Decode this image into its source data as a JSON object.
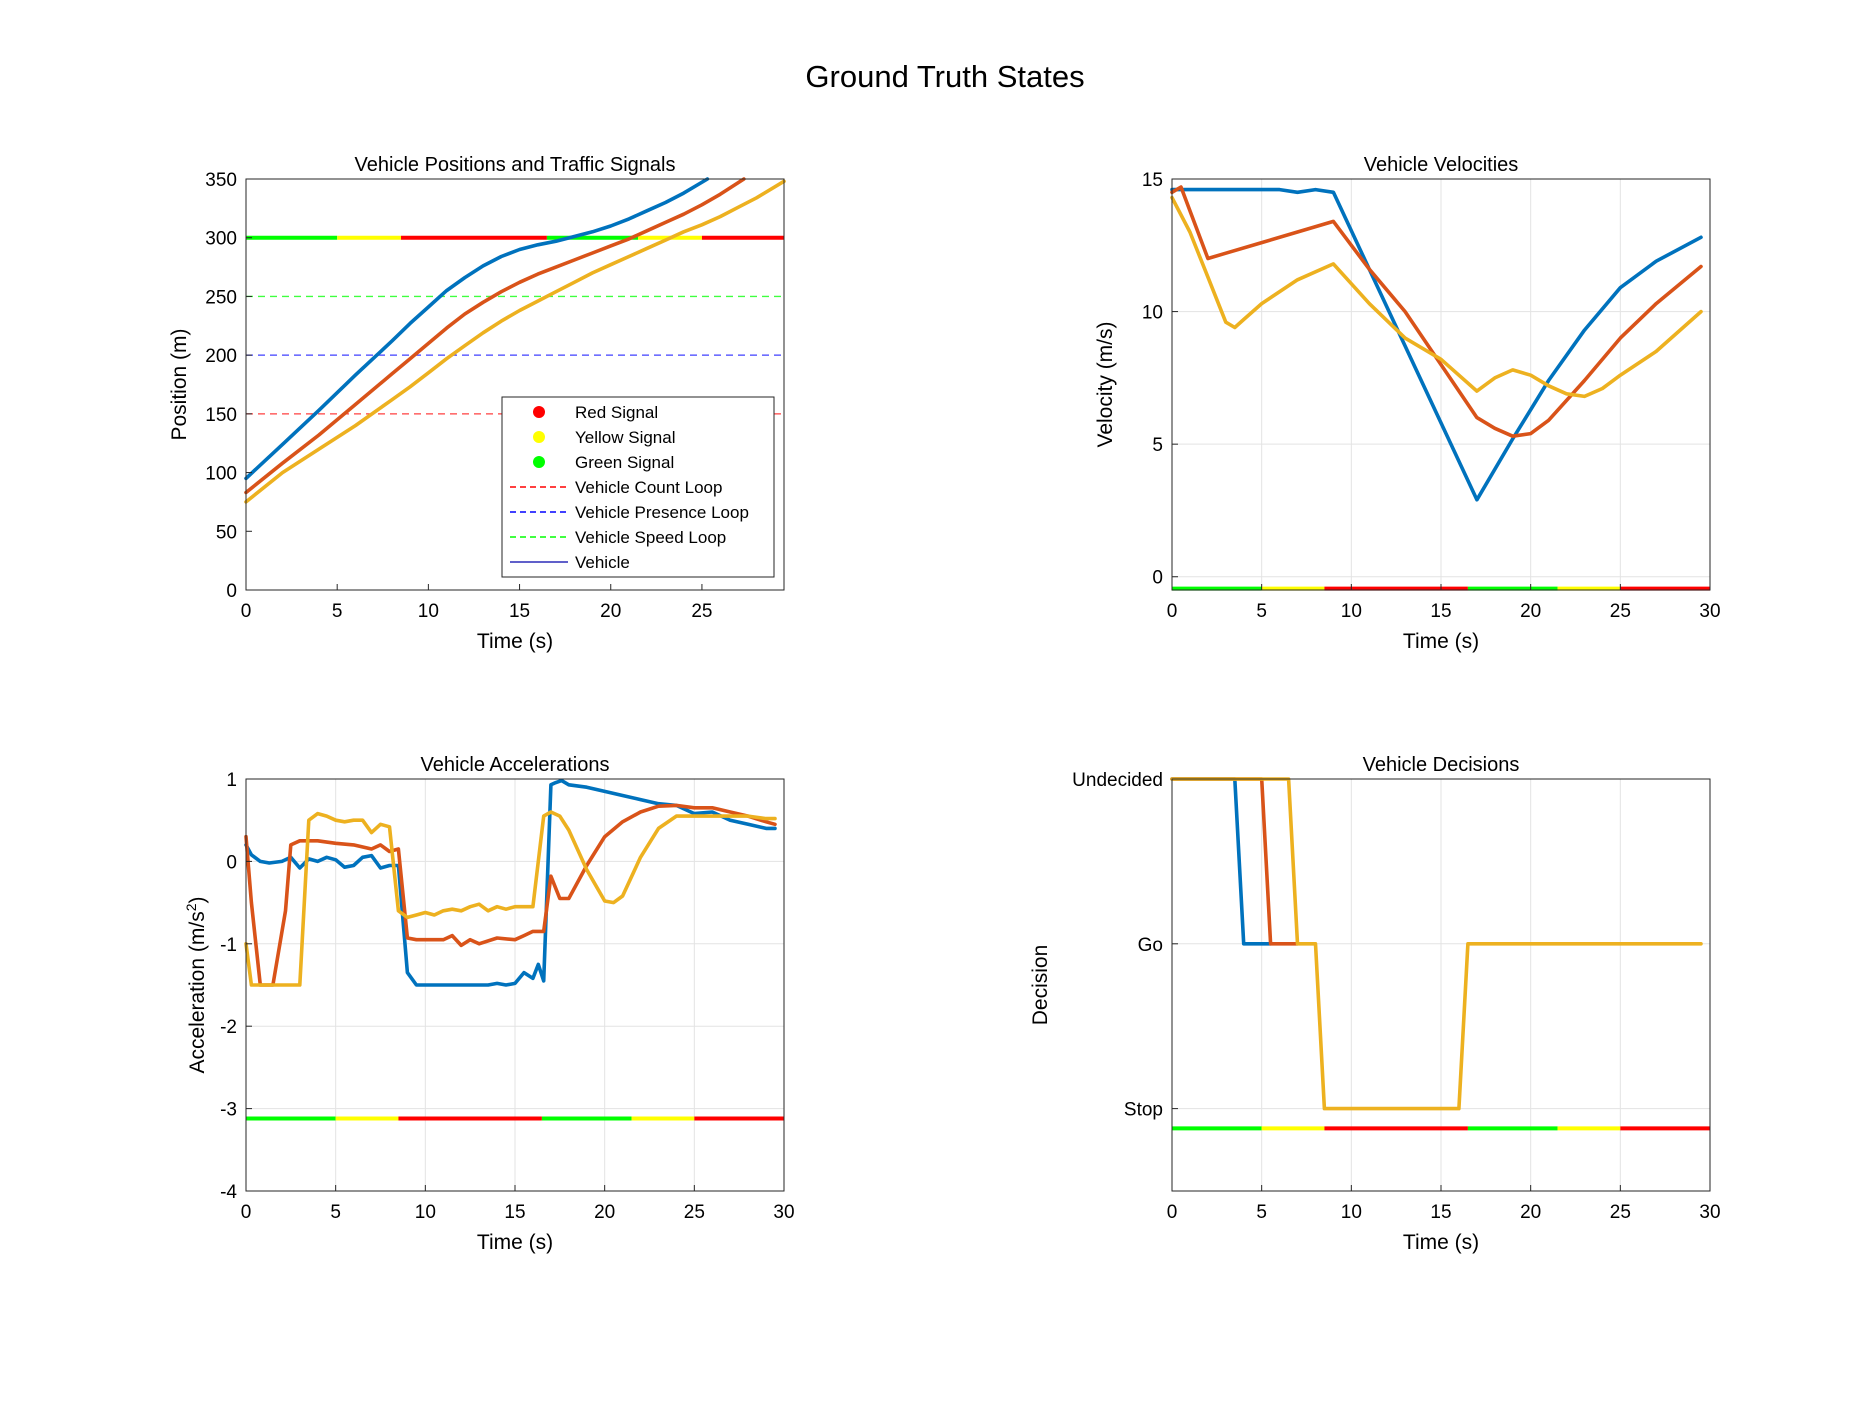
{
  "figure": {
    "title": "Ground Truth States"
  },
  "colors": {
    "series_1": "#0072BD",
    "series_2": "#D95319",
    "series_3": "#EDB120",
    "red_signal": "#FF0000",
    "yellow_signal": "#FFFF00",
    "green_signal": "#00FF00",
    "count_loop": "#FF0000",
    "presence_loop": "#0000FF",
    "speed_loop": "#00FF00",
    "grid": "#E3E3E3"
  },
  "chart_data": [
    {
      "id": "positions",
      "type": "line",
      "title": "Vehicle Positions and Traffic Signals",
      "xlabel": "Time (s)",
      "ylabel": "Position (m)",
      "xlim": [
        0,
        29.5
      ],
      "ylim": [
        0,
        350
      ],
      "xticks": [
        0,
        5,
        10,
        15,
        20,
        25
      ],
      "yticks": [
        0,
        50,
        100,
        150,
        200,
        250,
        300,
        350
      ],
      "grid": false,
      "legend_position": "inside-lower-right",
      "legend": [
        {
          "label": "Red Signal",
          "kind": "marker",
          "color": "#FF0000"
        },
        {
          "label": "Yellow Signal",
          "kind": "marker",
          "color": "#FFFF00"
        },
        {
          "label": "Green Signal",
          "kind": "marker",
          "color": "#00FF00"
        },
        {
          "label": "Vehicle Count Loop",
          "kind": "dashed",
          "color": "#FF0000"
        },
        {
          "label": "Vehicle Presence Loop",
          "kind": "dashed",
          "color": "#0000FF"
        },
        {
          "label": "Vehicle Speed Loop",
          "kind": "dashed",
          "color": "#00FF00"
        },
        {
          "label": "Vehicle",
          "kind": "thin",
          "color": "#0000AA"
        }
      ],
      "hlines": [
        {
          "y": 150,
          "color": "#FF0000"
        },
        {
          "y": 200,
          "color": "#0000FF"
        },
        {
          "y": 250,
          "color": "#00FF00"
        }
      ],
      "signal_bar": {
        "y": 300,
        "segments": [
          {
            "from": 0,
            "to": 5,
            "color": "#00FF00"
          },
          {
            "from": 5,
            "to": 8.5,
            "color": "#FFFF00"
          },
          {
            "from": 8.5,
            "to": 16.5,
            "color": "#FF0000"
          },
          {
            "from": 16.5,
            "to": 21.5,
            "color": "#00FF00"
          },
          {
            "from": 21.5,
            "to": 25,
            "color": "#FFFF00"
          },
          {
            "from": 25,
            "to": 29.5,
            "color": "#FF0000"
          }
        ]
      },
      "series": [
        {
          "color": "#0072BD",
          "x": [
            0,
            2,
            4,
            6,
            8,
            9,
            10,
            11,
            12,
            13,
            14,
            15,
            16,
            17,
            18,
            19,
            20,
            21,
            22,
            23,
            24,
            25.3
          ],
          "y": [
            95,
            124,
            153,
            183,
            212,
            227,
            241,
            255,
            266,
            276,
            284,
            290,
            294,
            297,
            301,
            305,
            310,
            316,
            323,
            330,
            338,
            350
          ]
        },
        {
          "color": "#D95319",
          "x": [
            0,
            2,
            4,
            6,
            8,
            9,
            10,
            11,
            12,
            13,
            14,
            15,
            16,
            17,
            18,
            19,
            20,
            21,
            22,
            23,
            24,
            25,
            26,
            27.3
          ],
          "y": [
            83,
            108,
            132,
            158,
            184,
            197,
            210,
            223,
            235,
            245,
            254,
            262,
            269,
            275,
            281,
            287,
            293,
            299,
            306,
            313,
            320,
            328,
            337,
            350
          ]
        },
        {
          "color": "#EDB120",
          "x": [
            0,
            2,
            4,
            6,
            8,
            9,
            10,
            11,
            12,
            13,
            14,
            15,
            16,
            17,
            18,
            19,
            20,
            21,
            22,
            23,
            24,
            25,
            26,
            27,
            28,
            29.5
          ],
          "y": [
            75,
            100,
            120,
            140,
            162,
            173,
            185,
            197,
            208,
            219,
            229,
            238,
            246,
            254,
            262,
            270,
            277,
            284,
            291,
            298,
            305,
            311,
            318,
            326,
            334,
            348
          ]
        }
      ]
    },
    {
      "id": "velocities",
      "type": "line",
      "title": "Vehicle Velocities",
      "xlabel": "Time (s)",
      "ylabel": "Velocity (m/s)",
      "xlim": [
        0,
        30
      ],
      "ylim": [
        -0.5,
        15
      ],
      "xticks": [
        0,
        5,
        10,
        15,
        20,
        25,
        30
      ],
      "yticks": [
        0,
        5,
        10,
        15
      ],
      "grid": true,
      "signal_bar": {
        "y": -0.45,
        "segments": [
          {
            "from": 0,
            "to": 5,
            "color": "#00FF00"
          },
          {
            "from": 5,
            "to": 8.5,
            "color": "#FFFF00"
          },
          {
            "from": 8.5,
            "to": 16.5,
            "color": "#FF0000"
          },
          {
            "from": 16.5,
            "to": 21.5,
            "color": "#00FF00"
          },
          {
            "from": 21.5,
            "to": 25,
            "color": "#FFFF00"
          },
          {
            "from": 25,
            "to": 30,
            "color": "#FF0000"
          }
        ]
      },
      "series": [
        {
          "color": "#0072BD",
          "x": [
            0,
            1,
            2,
            3,
            4,
            5,
            6,
            7,
            8,
            9,
            17,
            19,
            21,
            23,
            25,
            27,
            29.5
          ],
          "y": [
            14.6,
            14.6,
            14.6,
            14.6,
            14.6,
            14.6,
            14.6,
            14.5,
            14.6,
            14.5,
            2.9,
            5.2,
            7.4,
            9.3,
            10.9,
            11.9,
            12.8
          ]
        },
        {
          "color": "#D95319",
          "x": [
            0,
            0.5,
            2,
            3,
            5,
            7,
            9,
            11,
            13,
            15,
            17,
            18,
            19,
            20,
            21,
            23,
            25,
            27,
            29.5
          ],
          "y": [
            14.5,
            14.7,
            12.0,
            12.2,
            12.6,
            13.0,
            13.4,
            11.6,
            10.0,
            8.0,
            6.0,
            5.6,
            5.3,
            5.4,
            5.9,
            7.4,
            9.0,
            10.3,
            11.7
          ]
        },
        {
          "color": "#EDB120",
          "x": [
            0,
            1,
            2,
            3,
            3.5,
            4,
            5,
            7,
            9,
            11,
            13,
            15,
            17,
            18,
            19,
            20,
            21,
            22,
            23,
            24,
            25,
            27,
            29.5
          ],
          "y": [
            14.3,
            13.0,
            11.3,
            9.6,
            9.4,
            9.7,
            10.3,
            11.2,
            11.8,
            10.3,
            9.0,
            8.2,
            7.0,
            7.5,
            7.8,
            7.6,
            7.2,
            6.9,
            6.8,
            7.1,
            7.6,
            8.5,
            10.0
          ]
        }
      ]
    },
    {
      "id": "accelerations",
      "type": "line",
      "title": "Vehicle Accelerations",
      "xlabel": "Time (s)",
      "ylabel": "Acceleration (m/s",
      "ylabel_sup": "2",
      "ylabel_tail": ")",
      "xlim": [
        0,
        30
      ],
      "ylim": [
        -4,
        1
      ],
      "xticks": [
        0,
        5,
        10,
        15,
        20,
        25,
        30
      ],
      "yticks": [
        -4,
        -3,
        -2,
        -1,
        0,
        1
      ],
      "grid": true,
      "signal_bar": {
        "y": -3.12,
        "segments": [
          {
            "from": 0,
            "to": 5,
            "color": "#00FF00"
          },
          {
            "from": 5,
            "to": 8.5,
            "color": "#FFFF00"
          },
          {
            "from": 8.5,
            "to": 16.5,
            "color": "#FF0000"
          },
          {
            "from": 16.5,
            "to": 21.5,
            "color": "#00FF00"
          },
          {
            "from": 21.5,
            "to": 25,
            "color": "#FFFF00"
          },
          {
            "from": 25,
            "to": 30,
            "color": "#FF0000"
          }
        ]
      },
      "series": [
        {
          "color": "#0072BD",
          "x": [
            0,
            0.3,
            0.8,
            1.3,
            2.0,
            2.5,
            3.0,
            3.5,
            4.0,
            4.5,
            5.0,
            5.5,
            6.0,
            6.5,
            7.0,
            7.5,
            8.0,
            8.5,
            9.0,
            9.5,
            10,
            11,
            12,
            13,
            13.5,
            14,
            14.5,
            15,
            15.5,
            16,
            16.3,
            16.6,
            17.0,
            17.2,
            17.6,
            18,
            19,
            20,
            21,
            22,
            23,
            24,
            25,
            26,
            27,
            28,
            29,
            29.5
          ],
          "y": [
            0.2,
            0.08,
            0.0,
            -0.02,
            0.0,
            0.05,
            -0.08,
            0.03,
            0.0,
            0.05,
            0.02,
            -0.07,
            -0.05,
            0.05,
            0.07,
            -0.08,
            -0.05,
            -0.05,
            -1.35,
            -1.5,
            -1.5,
            -1.5,
            -1.5,
            -1.5,
            -1.5,
            -1.48,
            -1.5,
            -1.48,
            -1.35,
            -1.42,
            -1.25,
            -1.45,
            0.93,
            0.95,
            0.98,
            0.93,
            0.9,
            0.85,
            0.8,
            0.75,
            0.7,
            0.68,
            0.58,
            0.6,
            0.5,
            0.45,
            0.4,
            0.4
          ]
        },
        {
          "color": "#D95319",
          "x": [
            0,
            0.3,
            0.8,
            1.5,
            2.2,
            2.5,
            3.0,
            4.0,
            5.0,
            6.0,
            7.0,
            7.5,
            8.0,
            8.5,
            9.0,
            9.5,
            10,
            11,
            11.5,
            12,
            12.5,
            13,
            14,
            15,
            15.5,
            16,
            16.6,
            17.0,
            17.5,
            18.0,
            19,
            20,
            21,
            22,
            23,
            24,
            25,
            26,
            27,
            28,
            29,
            29.5
          ],
          "y": [
            0.3,
            -0.5,
            -1.5,
            -1.5,
            -0.6,
            0.2,
            0.25,
            0.25,
            0.22,
            0.2,
            0.15,
            0.2,
            0.12,
            0.15,
            -0.93,
            -0.95,
            -0.95,
            -0.95,
            -0.9,
            -1.02,
            -0.95,
            -1.0,
            -0.93,
            -0.95,
            -0.9,
            -0.85,
            -0.85,
            -0.18,
            -0.45,
            -0.45,
            -0.05,
            0.3,
            0.48,
            0.6,
            0.67,
            0.68,
            0.65,
            0.65,
            0.6,
            0.55,
            0.48,
            0.45
          ]
        },
        {
          "color": "#EDB120",
          "x": [
            0,
            0.3,
            1.0,
            2.0,
            2.5,
            3.0,
            3.5,
            4.0,
            4.5,
            5.0,
            5.5,
            6.0,
            6.5,
            7.0,
            7.5,
            8.0,
            8.5,
            9.0,
            9.5,
            10,
            10.5,
            11,
            11.5,
            12,
            12.5,
            13,
            13.5,
            14,
            14.5,
            15,
            16,
            16.6,
            17.0,
            17.5,
            18.0,
            19,
            20,
            20.5,
            21,
            22,
            23,
            24,
            25,
            26,
            27,
            28,
            29,
            29.5
          ],
          "y": [
            -1.0,
            -1.5,
            -1.5,
            -1.5,
            -1.5,
            -1.5,
            0.5,
            0.58,
            0.55,
            0.5,
            0.48,
            0.5,
            0.5,
            0.35,
            0.45,
            0.42,
            -0.6,
            -0.68,
            -0.65,
            -0.62,
            -0.65,
            -0.6,
            -0.58,
            -0.6,
            -0.55,
            -0.52,
            -0.6,
            -0.55,
            -0.58,
            -0.55,
            -0.55,
            0.55,
            0.6,
            0.55,
            0.38,
            -0.1,
            -0.48,
            -0.5,
            -0.42,
            0.05,
            0.4,
            0.55,
            0.55,
            0.55,
            0.55,
            0.55,
            0.52,
            0.52
          ]
        }
      ]
    },
    {
      "id": "decisions",
      "type": "line",
      "title": "Vehicle Decisions",
      "xlabel": "Time (s)",
      "ylabel": "Decision",
      "xlim": [
        0,
        30
      ],
      "ylim": [
        -0.5,
        2
      ],
      "xticks": [
        0,
        5,
        10,
        15,
        20,
        25,
        30
      ],
      "yticks": [
        0,
        1,
        2
      ],
      "ytick_labels": [
        "Stop",
        "Go",
        "Undecided"
      ],
      "grid": true,
      "signal_bar": {
        "y": -0.12,
        "segments": [
          {
            "from": 0,
            "to": 5,
            "color": "#00FF00"
          },
          {
            "from": 5,
            "to": 8.5,
            "color": "#FFFF00"
          },
          {
            "from": 8.5,
            "to": 16.5,
            "color": "#FF0000"
          },
          {
            "from": 16.5,
            "to": 21.5,
            "color": "#00FF00"
          },
          {
            "from": 21.5,
            "to": 25,
            "color": "#FFFF00"
          },
          {
            "from": 25,
            "to": 30,
            "color": "#FF0000"
          }
        ]
      },
      "series": [
        {
          "color": "#0072BD",
          "x": [
            0,
            3.5,
            4.0,
            5.5
          ],
          "y": [
            2,
            2,
            1,
            1
          ]
        },
        {
          "color": "#D95319",
          "x": [
            0,
            5.0,
            5.5,
            7.0
          ],
          "y": [
            2,
            2,
            1,
            1
          ]
        },
        {
          "color": "#EDB120",
          "x": [
            0,
            6.5,
            7.0,
            8.0,
            8.5,
            16.0,
            16.5,
            29.5
          ],
          "y": [
            2,
            2,
            1,
            1,
            0,
            0,
            1,
            1
          ]
        }
      ]
    }
  ]
}
